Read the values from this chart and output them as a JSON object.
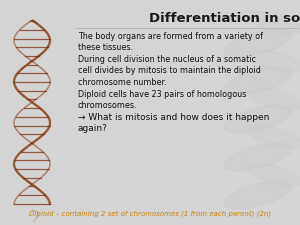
{
  "title": "Differentiation in somatic cells",
  "title_color": "#1a1a1a",
  "title_fontsize": 9.5,
  "bg_color": "#d4d4d4",
  "bullet1": "The body organs are formed from a variety of\nthese tissues.",
  "bullet2": "During cell division the nucleus of a somatic\ncell divides by mitosis to maintain the diploid\nchromosome number.",
  "bullet3": "Diploid cells have 23 pairs of homologous\nchromosomes.",
  "question": "→ What is mitosis and how does it happen\nagain?",
  "footnote": "Diploid – containing 2 set of chromosomes (1 from each parent) (2n)",
  "footnote_color": "#c8820a",
  "body_color": "#111111",
  "body_fontsize": 5.8,
  "question_fontsize": 6.5,
  "footnote_fontsize": 5.0,
  "helix_color1": "#7B2D00",
  "helix_color2": "#8B3A10",
  "rung_color": "#7B3010",
  "watermark_color": "#c8c8c8"
}
